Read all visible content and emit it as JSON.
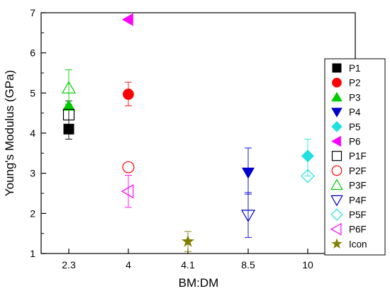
{
  "chart_data": {
    "type": "scatter",
    "xlabel": "BM:DM",
    "ylabel": "Young's Modulus (GPa)",
    "categories": [
      "2.3",
      "4",
      "4.1",
      "8.5",
      "10"
    ],
    "ylim": [
      1,
      7
    ],
    "yticks": [
      "1",
      "2",
      "3",
      "4",
      "5",
      "6",
      "7"
    ],
    "grid": false,
    "legend_position": "right",
    "series": [
      {
        "name": "P1",
        "category": "2.3",
        "value": 4.1,
        "error": [
          4.1,
          4.1
        ],
        "marker": "square",
        "filled": true,
        "color": "#000000"
      },
      {
        "name": "P2",
        "category": "4",
        "value": 4.97,
        "error": [
          4.68,
          5.27
        ],
        "marker": "circle",
        "filled": true,
        "color": "#ff0000"
      },
      {
        "name": "P3",
        "category": "2.3",
        "value": 4.68,
        "error": [
          4.68,
          4.68
        ],
        "marker": "triangle-up",
        "filled": true,
        "color": "#00cc00"
      },
      {
        "name": "P4",
        "category": "8.5",
        "value": 3.02,
        "error": [
          2.48,
          3.63
        ],
        "marker": "triangle-down",
        "filled": true,
        "color": "#0000cc"
      },
      {
        "name": "P5",
        "category": "10",
        "value": 3.43,
        "error": [
          3.43,
          3.43
        ],
        "marker": "diamond",
        "filled": true,
        "color": "#22e0e0"
      },
      {
        "name": "P6",
        "category": "4",
        "value": 6.83,
        "error": [
          6.83,
          6.83
        ],
        "marker": "triangle-left",
        "filled": true,
        "color": "#ff00ff"
      },
      {
        "name": "P1F",
        "category": "2.3",
        "value": 4.46,
        "error": [
          3.85,
          4.8
        ],
        "marker": "square",
        "filled": false,
        "color": "#000000"
      },
      {
        "name": "P2F",
        "category": "4",
        "value": 3.15,
        "error": [
          3.15,
          3.15
        ],
        "marker": "circle",
        "filled": false,
        "color": "#ff0000"
      },
      {
        "name": "P3F",
        "category": "2.3",
        "value": 5.12,
        "error": [
          4.72,
          5.58
        ],
        "marker": "triangle-up",
        "filled": false,
        "color": "#00cc00"
      },
      {
        "name": "P4F",
        "category": "8.5",
        "value": 1.96,
        "error": [
          1.4,
          2.52
        ],
        "marker": "triangle-down",
        "filled": false,
        "color": "#0000cc"
      },
      {
        "name": "P5F",
        "category": "10",
        "value": 2.93,
        "error": [
          2.93,
          3.85
        ],
        "marker": "diamond",
        "filled": false,
        "color": "#22e0e0"
      },
      {
        "name": "P6F",
        "category": "4",
        "value": 2.55,
        "error": [
          2.15,
          2.95
        ],
        "marker": "triangle-left",
        "filled": false,
        "color": "#ff00ff"
      },
      {
        "name": "Icon",
        "category": "4.1",
        "value": 1.3,
        "error": [
          1.05,
          1.55
        ],
        "marker": "star",
        "filled": true,
        "color": "#808000"
      }
    ]
  }
}
